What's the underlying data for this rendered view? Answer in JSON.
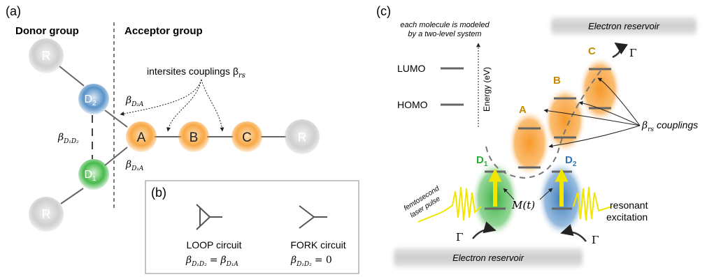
{
  "panel_a": {
    "label": "(a)",
    "donor_heading": "Donor group",
    "acceptor_heading": "Acceptor group",
    "couplings_label": "intersites couplings β",
    "couplings_sub": "rs",
    "nodes": {
      "r": "R",
      "d": "D",
      "a": "A",
      "b": "B",
      "c": "C"
    },
    "sub_1": "1",
    "sub_2": "2",
    "beta": "β",
    "beta_d2a_sub": "D₂A",
    "beta_d1a_sub": "D₁A",
    "beta_d1d2_sub": "D₁D₂"
  },
  "panel_b": {
    "label": "(b)",
    "loop_name": "LOOP circuit",
    "loop_eq_lhs": "D₁D₂",
    "loop_eq_rhs": "D₁A",
    "fork_name": "FORK circuit",
    "fork_eq_lhs": "D₁D₂",
    "fork_eq_val": "= 0",
    "equals": "="
  },
  "panel_c": {
    "label": "(c)",
    "note_line1": "each molecule is modeled",
    "note_line2": "by a two-level system",
    "lumo": "LUMO",
    "homo": "HOMO",
    "energy_axis": "Energy (eV)",
    "reservoir_top": "Electron reservoir",
    "reservoir_bottom": "Electron reservoir",
    "gamma": "Γ",
    "site_a": "A",
    "site_b": "B",
    "site_c": "C",
    "site_d": "D",
    "sub_1": "1",
    "sub_2": "2",
    "couplings_label": "couplings",
    "couplings_beta": "β",
    "couplings_sub": "rs",
    "laser_line1": "femtosecond",
    "laser_line2": "laser pulse",
    "dipole": "M(t)",
    "resonant_line1": "resonant",
    "resonant_line2": "excitation"
  },
  "colors": {
    "orange": "#f7931e",
    "blue": "#2e75b6",
    "green": "#2bab35",
    "grey": "#b3b3b3",
    "yellow": "#f2e600",
    "site_label_orange": "#c68a00"
  }
}
